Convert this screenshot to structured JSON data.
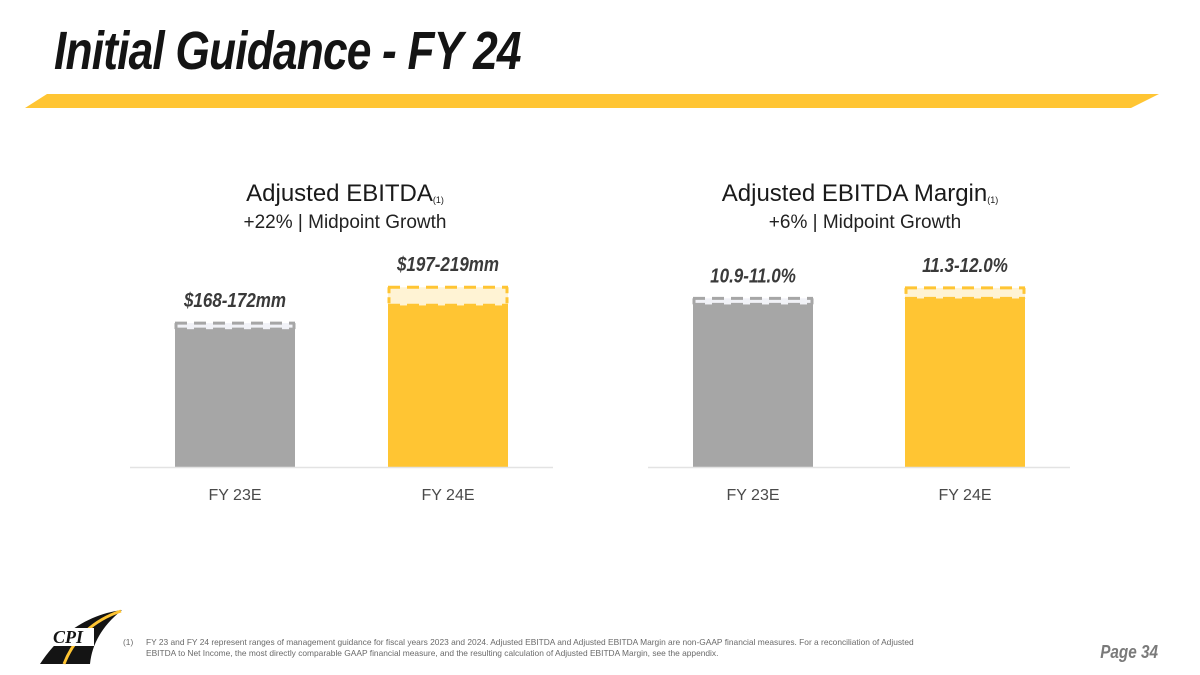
{
  "slide": {
    "title": "Initial Guidance - FY 24",
    "page_label": "Page 34",
    "footnote_marker": "(1)",
    "footnote_text": "FY 23 and FY 24 represent ranges of management guidance for fiscal years 2023 and 2024. Adjusted EBITDA and Adjusted EBITDA Margin are non-GAAP financial measures. For a reconciliation of Adjusted EBITDA to Net Income, the most directly comparable GAAP financial measure, and the resulting calculation of Adjusted EBITDA Margin, see the appendix.",
    "logo_text": "CPI",
    "colors": {
      "accent": "#FFC533",
      "gray_bar": "#A6A6A6",
      "title": "#141414"
    }
  },
  "chart_data": [
    {
      "type": "bar",
      "title": "Adjusted EBITDA",
      "title_superscript": "(1)",
      "subtitle": "+22% | Midpoint Growth",
      "categories": [
        "FY 23E",
        "FY 24E"
      ],
      "unit": "$mm",
      "ranges": [
        [
          168,
          172
        ],
        [
          197,
          219
        ]
      ],
      "data_labels": [
        "$168-172mm",
        "$197-219mm"
      ],
      "colors": [
        "#A6A6A6",
        "#FFC533"
      ],
      "ylim": [
        0,
        240
      ]
    },
    {
      "type": "bar",
      "title": "Adjusted EBITDA Margin",
      "title_superscript": "(1)",
      "subtitle": "+6% | Midpoint Growth",
      "categories": [
        "FY 23E",
        "FY 24E"
      ],
      "unit": "%",
      "ranges": [
        [
          10.9,
          11.0
        ],
        [
          11.3,
          12.0
        ]
      ],
      "data_labels": [
        "10.9-11.0%",
        "11.3-12.0%"
      ],
      "colors": [
        "#A6A6A6",
        "#FFC533"
      ],
      "ylim": [
        0,
        13.2
      ]
    }
  ]
}
